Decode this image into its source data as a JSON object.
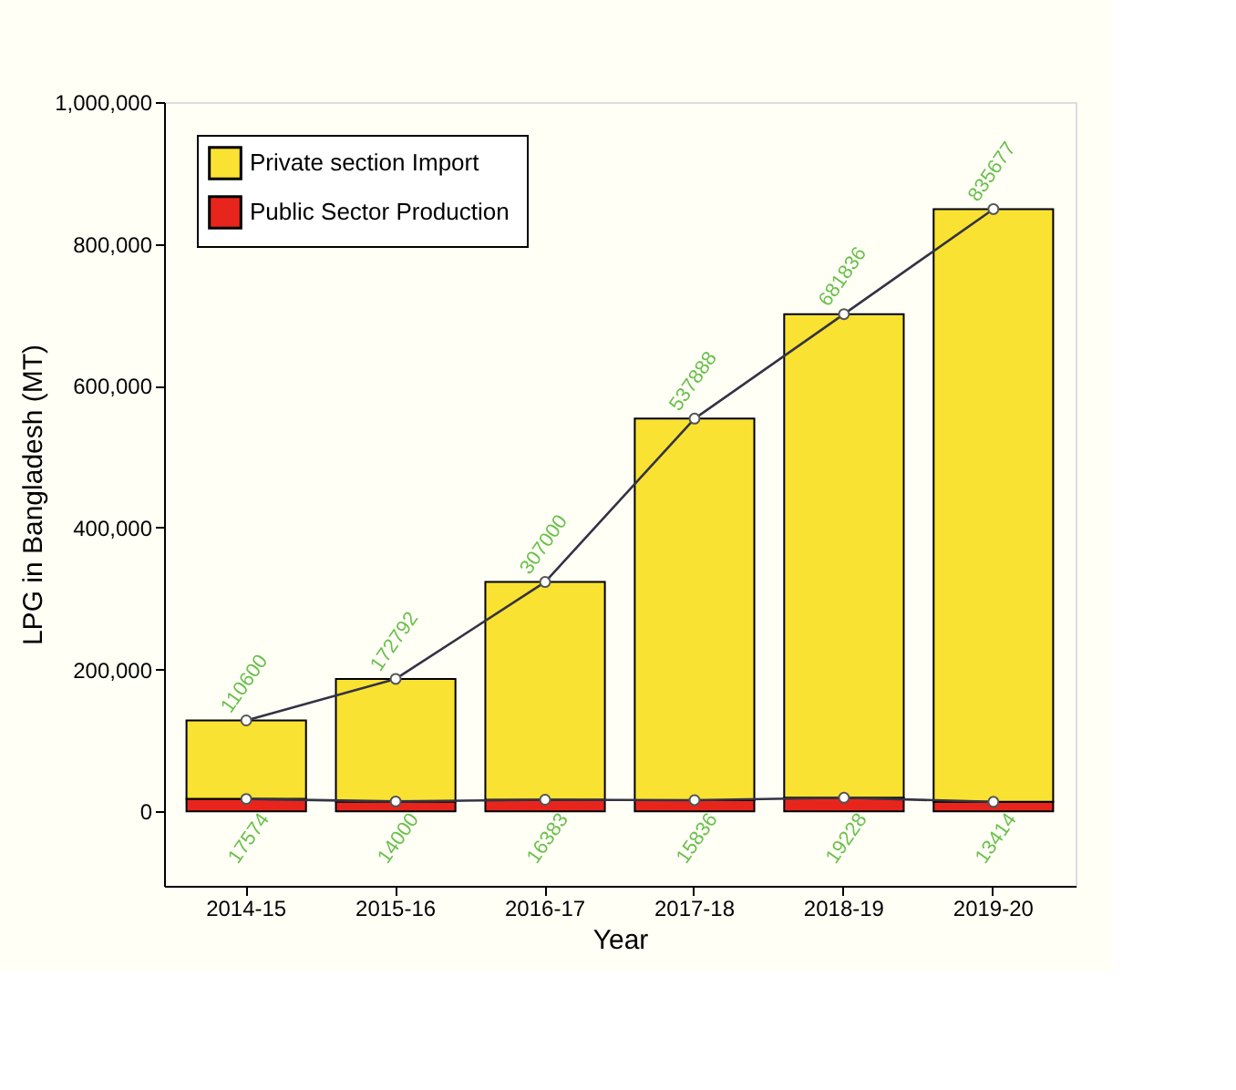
{
  "chart_data": {
    "type": "bar",
    "stacked": true,
    "xlabel": "Year",
    "ylabel": "LPG in Bangladesh (MT)",
    "categories": [
      "2014-15",
      "2015-16",
      "2016-17",
      "2017-18",
      "2018-19",
      "2019-20"
    ],
    "series": [
      {
        "name": "Public  Sector Production",
        "color": "#e8251c",
        "values": [
          17574,
          14000,
          16383,
          15836,
          19228,
          13414
        ]
      },
      {
        "name": "Private section  Import",
        "color": "#f9e232",
        "values": [
          110600,
          172792,
          307000,
          537888,
          681836,
          835677
        ]
      },
      {
        "type": "line",
        "color": "#333344",
        "marker": "circle",
        "line_style": "solid",
        "values": [
          17574,
          14000,
          16383,
          15836,
          19228,
          13414
        ],
        "value_labels": [
          null,
          null,
          null,
          null,
          null,
          null
        ]
      },
      {
        "type": "line",
        "color": "#333344",
        "marker": "circle",
        "line_style": "solid",
        "values": [
          128174,
          186792,
          323383,
          553724,
          701064,
          849091
        ],
        "value_labels": [
          null,
          null,
          null,
          null,
          null,
          null
        ]
      }
    ],
    "ylim": [
      -105000,
      1000000
    ],
    "yticks": [
      0,
      {
        "value": 200000,
        "label": "200,000"
      },
      {
        "value": 400000,
        "label": "400,000"
      },
      {
        "value": 600000,
        "label": "600,000"
      },
      {
        "value": 800000,
        "label": "800,000"
      },
      {
        "value": 1000000,
        "label": "1,000,000"
      }
    ],
    "data_labels": true,
    "legend": "top left",
    "grid": false
  }
}
